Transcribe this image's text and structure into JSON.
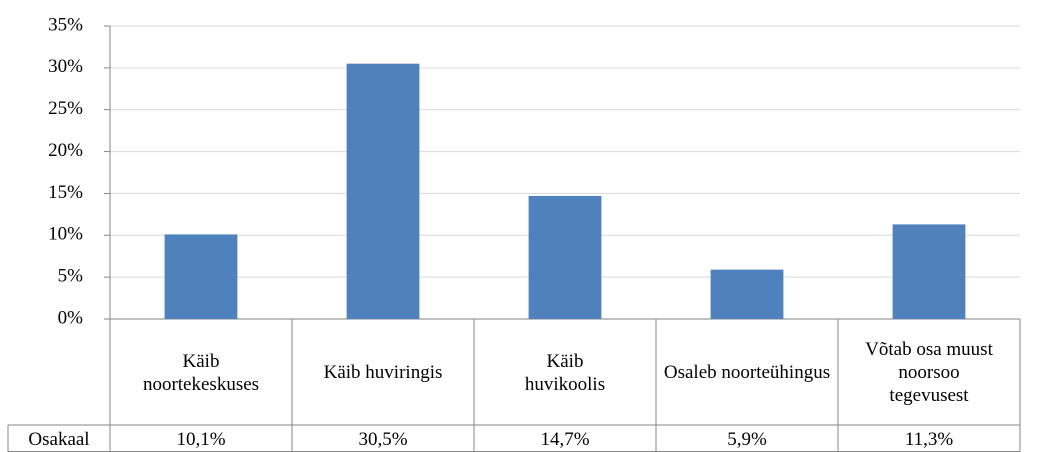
{
  "chart_data": {
    "type": "bar",
    "categories": [
      "Käib noortekeskuses",
      "Käib huviringis",
      "Käib huvikoolis",
      "Osaleb noorteühingus",
      "Võtab osa muust noorsoo tegevusest"
    ],
    "series_name": "Osakaal",
    "values": [
      10.1,
      30.5,
      14.7,
      5.9,
      11.3
    ],
    "value_labels": [
      "10,1%",
      "30,5%",
      "14,7%",
      "5,9%",
      "11,3%"
    ],
    "color": "#4f81bd",
    "ylim": [
      0,
      35
    ],
    "yticks": [
      {
        "value": 0,
        "label": "0%"
      },
      {
        "value": 5,
        "label": "5%"
      },
      {
        "value": 10,
        "label": "10%"
      },
      {
        "value": 15,
        "label": "15%"
      },
      {
        "value": 20,
        "label": "20%"
      },
      {
        "value": 25,
        "label": "25%"
      },
      {
        "value": 30,
        "label": "30%"
      },
      {
        "value": 35,
        "label": "35%"
      }
    ],
    "grid": true
  }
}
